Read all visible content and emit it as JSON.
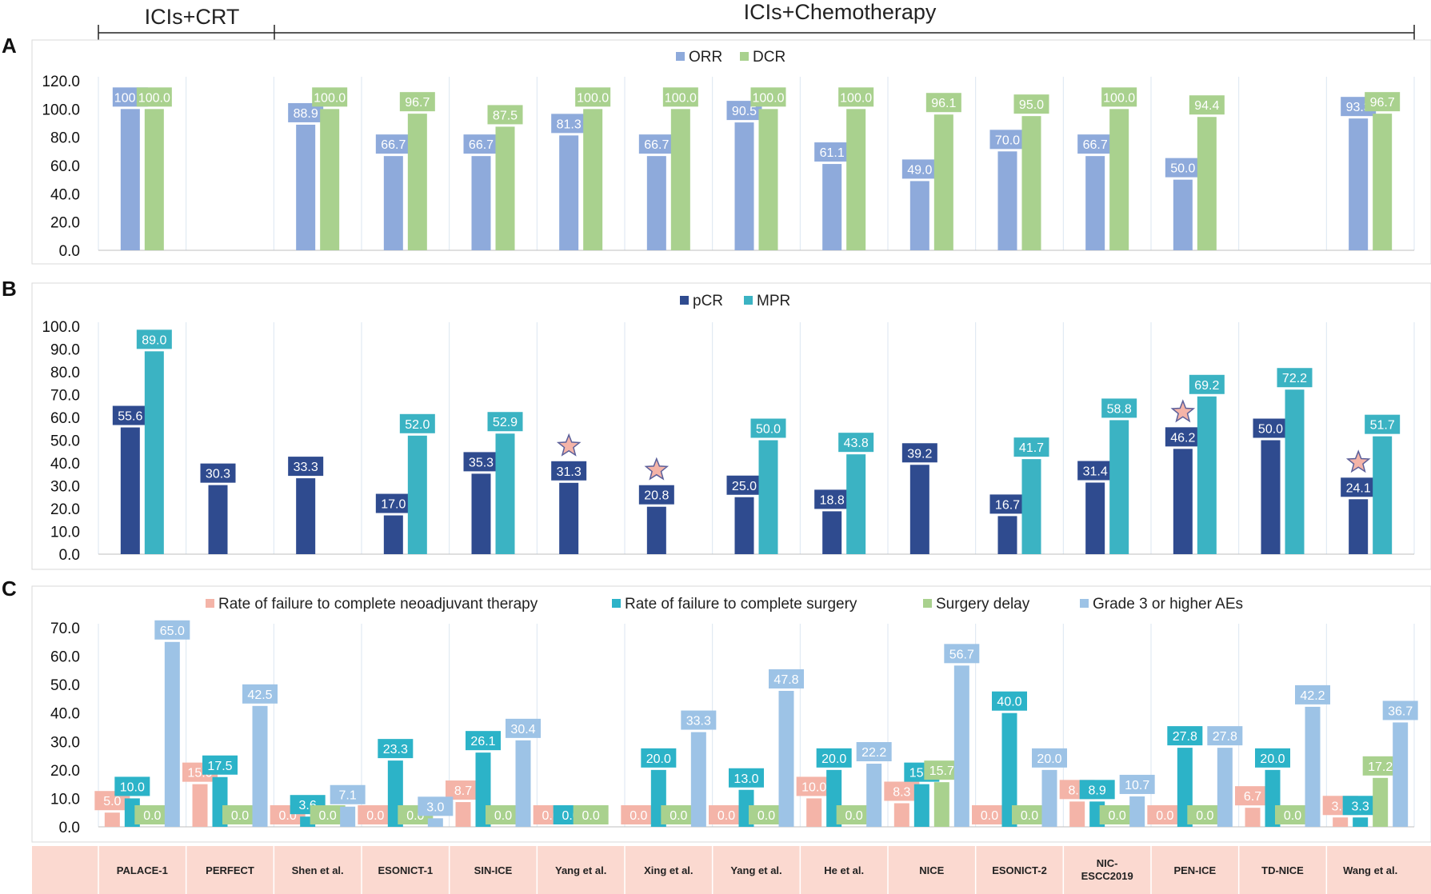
{
  "header": {
    "group1_label": "ICIs+CRT",
    "group2_label": "ICIs+Chemotherapy"
  },
  "studies": [
    "PALACE-1",
    "PERFECT",
    "Shen et al.",
    "ESONICT-1",
    "SIN-ICE",
    "Yang et al.",
    "Xing et al.",
    "Yang et al.",
    "He et al.",
    "NICE",
    "ESONICT-2",
    "NIC-ESCC2019",
    "PEN-ICE",
    "TD-NICE",
    "Wang et al."
  ],
  "chart_data": [
    {
      "panel": "A",
      "type": "bar",
      "ylim": [
        0,
        120
      ],
      "yticks": [
        "0.0",
        "20.0",
        "40.0",
        "60.0",
        "80.0",
        "100.0",
        "120.0"
      ],
      "legend_position": "top-center",
      "series": [
        {
          "name": "ORR",
          "color": "#8eaadb",
          "values": [
            100.0,
            null,
            88.9,
            66.7,
            66.7,
            81.3,
            66.7,
            90.5,
            61.1,
            49.0,
            70.0,
            66.7,
            50.0,
            null,
            93.3
          ]
        },
        {
          "name": "DCR",
          "color": "#a9d18e",
          "values": [
            100.0,
            null,
            100.0,
            96.7,
            87.5,
            100.0,
            100.0,
            100.0,
            100.0,
            96.1,
            95.0,
            100.0,
            94.4,
            null,
            96.7
          ]
        }
      ]
    },
    {
      "panel": "B",
      "type": "bar",
      "ylim": [
        0,
        100
      ],
      "yticks": [
        "0.0",
        "10.0",
        "20.0",
        "30.0",
        "40.0",
        "50.0",
        "60.0",
        "70.0",
        "80.0",
        "90.0",
        "100.0"
      ],
      "legend_position": "top-center",
      "series": [
        {
          "name": "pCR",
          "color": "#2f4b8f",
          "values": [
            55.6,
            30.3,
            33.3,
            17.0,
            35.3,
            31.3,
            20.8,
            25.0,
            18.8,
            39.2,
            16.7,
            31.4,
            46.2,
            50.0,
            24.1
          ]
        },
        {
          "name": "MPR",
          "color": "#3bb3c3",
          "values": [
            89.0,
            null,
            null,
            52.0,
            52.9,
            null,
            null,
            50.0,
            43.8,
            null,
            41.7,
            58.8,
            69.2,
            72.2,
            51.7
          ]
        }
      ],
      "star_markers": [
        5,
        6,
        12,
        14
      ]
    },
    {
      "panel": "C",
      "type": "bar",
      "ylim": [
        0,
        70
      ],
      "yticks": [
        "0.0",
        "10.0",
        "20.0",
        "30.0",
        "40.0",
        "50.0",
        "60.0",
        "70.0"
      ],
      "legend_position": "top-center",
      "series": [
        {
          "name": "Rate of failure to complete neoadjuvant therapy",
          "color": "#f4b4a8",
          "values": [
            5.0,
            15.0,
            0.0,
            0.0,
            8.7,
            0.0,
            0.0,
            0.0,
            10.0,
            8.3,
            0.0,
            8.9,
            0.0,
            6.7,
            3.3
          ]
        },
        {
          "name": "Rate of failure to complete surgery",
          "color": "#2cb3c8",
          "values": [
            10.0,
            17.5,
            3.6,
            23.3,
            26.1,
            0.0,
            20.0,
            13.0,
            20.0,
            15.0,
            40.0,
            8.9,
            27.8,
            20.0,
            3.3
          ]
        },
        {
          "name": "Surgery delay",
          "color": "#a9d18e",
          "values": [
            0.0,
            0.0,
            0.0,
            0.0,
            0.0,
            0.0,
            0.0,
            0.0,
            0.0,
            15.7,
            0.0,
            0.0,
            0.0,
            0.0,
            17.2
          ]
        },
        {
          "name": "Grade 3 or higher AEs",
          "color": "#9dc3e6",
          "values": [
            65.0,
            42.5,
            7.1,
            3.0,
            30.4,
            null,
            33.3,
            47.8,
            22.2,
            56.7,
            20.0,
            10.7,
            27.8,
            42.2,
            36.7
          ]
        }
      ]
    }
  ]
}
